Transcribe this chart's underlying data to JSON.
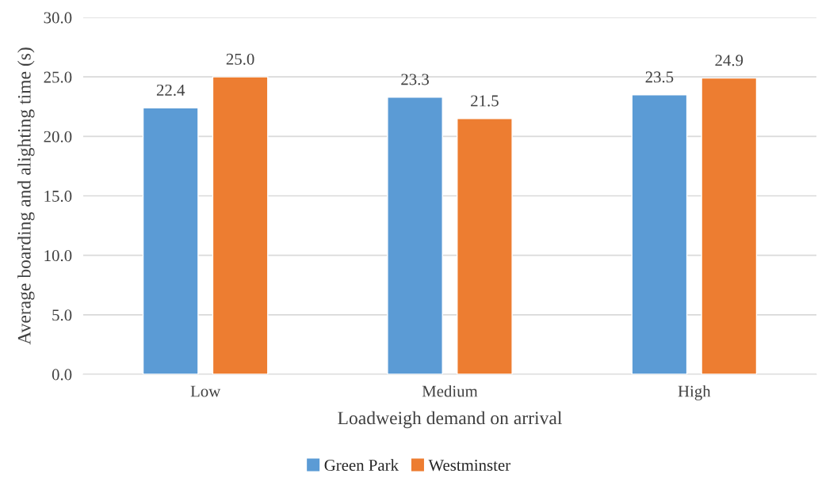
{
  "chart_data": {
    "type": "bar",
    "xlabel": "Loadweigh demand on arrival",
    "ylabel": "Average boarding and alighting time (s)",
    "categories": [
      "Low",
      "Medium",
      "High"
    ],
    "series": [
      {
        "name": "Green Park",
        "color": "#5b9bd5",
        "values": [
          22.4,
          23.3,
          23.5
        ],
        "value_labels": [
          "22.4",
          "23.3",
          "23.5"
        ]
      },
      {
        "name": "Westminster",
        "color": "#ed7d31",
        "values": [
          25.0,
          21.5,
          24.9
        ],
        "value_labels": [
          "25.0",
          "21.5",
          "24.9"
        ]
      }
    ],
    "ylim": [
      0,
      30
    ],
    "yticks": [
      {
        "value": 0,
        "label": "0.0"
      },
      {
        "value": 5,
        "label": "5.0"
      },
      {
        "value": 10,
        "label": "10.0"
      },
      {
        "value": 15,
        "label": "15.0"
      },
      {
        "value": 20,
        "label": "20.0"
      },
      {
        "value": 25,
        "label": "25.0"
      },
      {
        "value": 30,
        "label": "30.0"
      }
    ],
    "grid": "y",
    "legend": "bottom"
  }
}
